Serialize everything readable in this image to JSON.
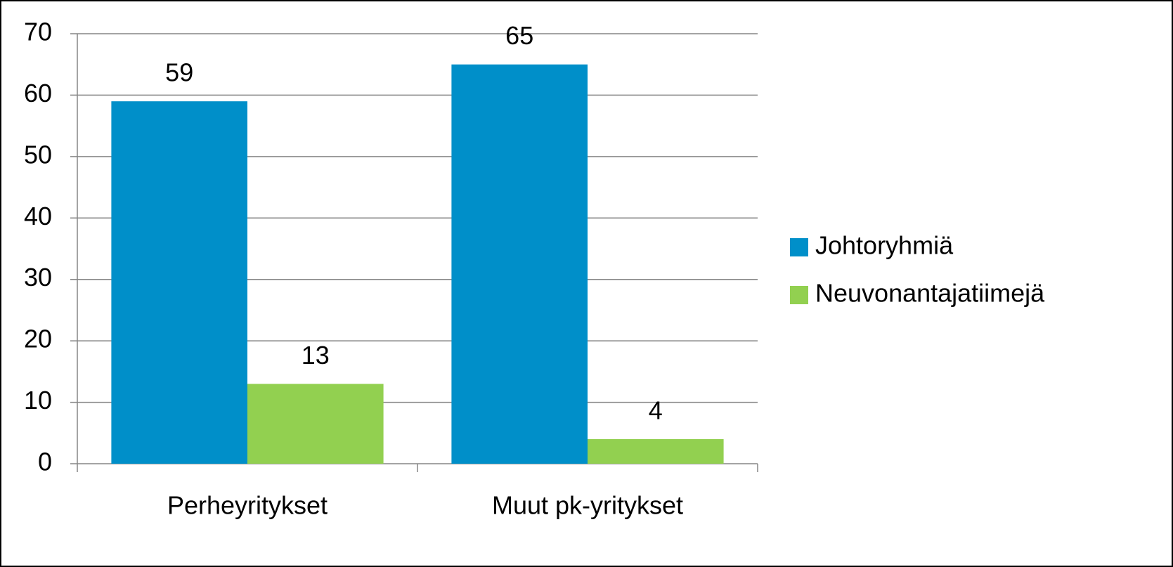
{
  "chart_data": {
    "type": "bar",
    "categories": [
      "Perheyritykset",
      "Muut pk-yritykset"
    ],
    "series": [
      {
        "name": "Johtoryhmiä",
        "color": "#008fc9",
        "values": [
          59,
          65
        ]
      },
      {
        "name": "Neuvonantajatiimejä",
        "color": "#92d050",
        "values": [
          13,
          4
        ]
      }
    ],
    "ylim": [
      0,
      70
    ],
    "yticks": [
      0,
      10,
      20,
      30,
      40,
      50,
      60,
      70
    ],
    "grid": true,
    "legend": "right"
  }
}
